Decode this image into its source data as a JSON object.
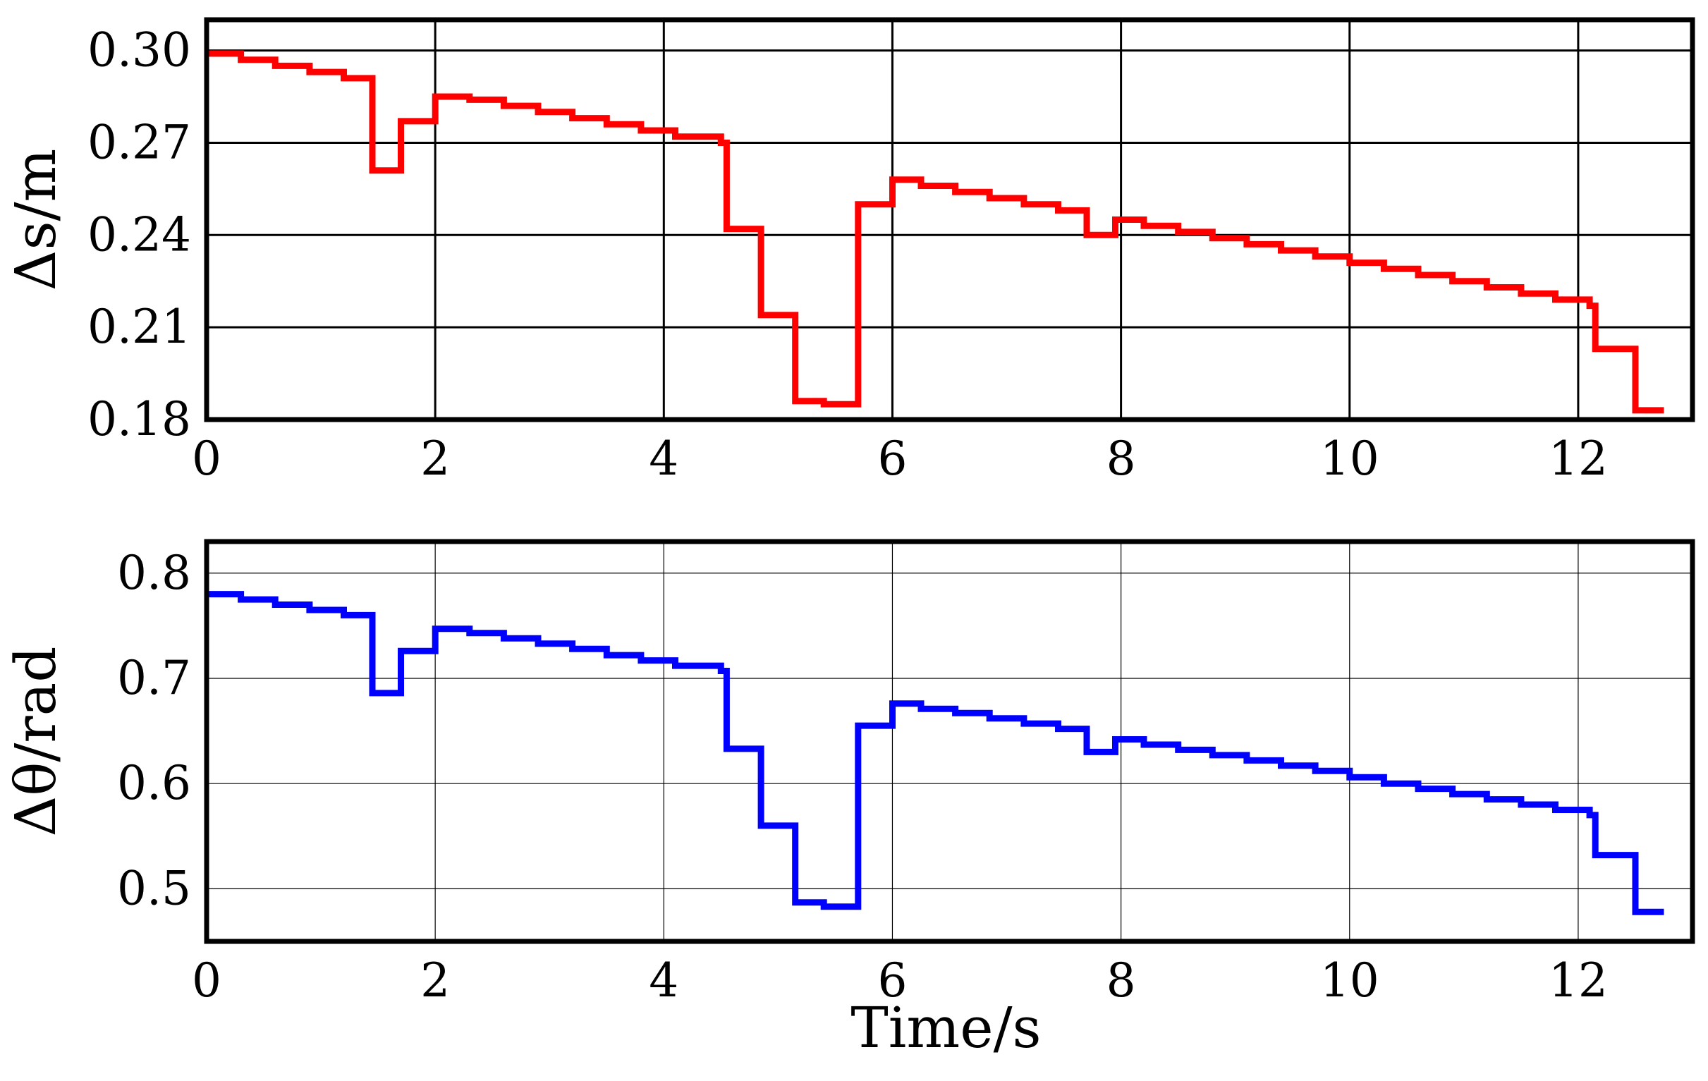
{
  "chart_data": [
    {
      "type": "line",
      "step": true,
      "xlabel": "",
      "ylabel": "Δs/m",
      "xlim": [
        0,
        13
      ],
      "ylim": [
        0.18,
        0.31
      ],
      "xticks": [
        "0",
        "2",
        "4",
        "6",
        "8",
        "10",
        "12"
      ],
      "yticks": [
        "0.18",
        "0.21",
        "0.24",
        "0.27",
        "0.30"
      ],
      "grid": true,
      "series": [
        {
          "color": "#ff0000",
          "x": [
            0,
            0.3,
            0.6,
            0.9,
            1.2,
            1.4,
            1.45,
            1.65,
            1.7,
            1.95,
            2.0,
            2.3,
            2.6,
            2.9,
            3.2,
            3.5,
            3.8,
            4.1,
            4.5,
            4.55,
            4.8,
            4.85,
            5.1,
            5.15,
            5.4,
            5.65,
            5.7,
            5.95,
            6.0,
            6.25,
            6.55,
            6.85,
            7.15,
            7.45,
            7.65,
            7.7,
            7.9,
            7.95,
            8.2,
            8.5,
            8.8,
            9.1,
            9.4,
            9.7,
            10.0,
            10.3,
            10.6,
            10.9,
            11.2,
            11.5,
            11.8,
            12.1,
            12.15,
            12.45,
            12.5,
            12.75
          ],
          "y": [
            0.299,
            0.297,
            0.295,
            0.293,
            0.291,
            0.291,
            0.261,
            0.261,
            0.277,
            0.277,
            0.285,
            0.284,
            0.282,
            0.28,
            0.278,
            0.276,
            0.274,
            0.272,
            0.27,
            0.242,
            0.242,
            0.214,
            0.214,
            0.186,
            0.185,
            0.185,
            0.25,
            0.25,
            0.258,
            0.256,
            0.254,
            0.252,
            0.25,
            0.248,
            0.248,
            0.24,
            0.24,
            0.245,
            0.243,
            0.241,
            0.239,
            0.237,
            0.235,
            0.233,
            0.231,
            0.229,
            0.227,
            0.225,
            0.223,
            0.221,
            0.219,
            0.217,
            0.203,
            0.203,
            0.183,
            0.183
          ]
        }
      ]
    },
    {
      "type": "line",
      "step": true,
      "xlabel": "Time/s",
      "ylabel": "Δθ/rad",
      "xlim": [
        0,
        13
      ],
      "ylim": [
        0.45,
        0.83
      ],
      "xticks": [
        "0",
        "2",
        "4",
        "6",
        "8",
        "10",
        "12"
      ],
      "yticks": [
        "0.5",
        "0.6",
        "0.7",
        "0.8"
      ],
      "grid": true,
      "series": [
        {
          "color": "#0000ff",
          "x": [
            0,
            0.3,
            0.6,
            0.9,
            1.2,
            1.4,
            1.45,
            1.65,
            1.7,
            1.95,
            2.0,
            2.3,
            2.6,
            2.9,
            3.2,
            3.5,
            3.8,
            4.1,
            4.5,
            4.55,
            4.8,
            4.85,
            5.1,
            5.15,
            5.4,
            5.65,
            5.7,
            5.95,
            6.0,
            6.25,
            6.55,
            6.85,
            7.15,
            7.45,
            7.65,
            7.7,
            7.9,
            7.95,
            8.2,
            8.5,
            8.8,
            9.1,
            9.4,
            9.7,
            10.0,
            10.3,
            10.6,
            10.9,
            11.2,
            11.5,
            11.8,
            12.1,
            12.15,
            12.45,
            12.5,
            12.75
          ],
          "y": [
            0.78,
            0.775,
            0.77,
            0.765,
            0.76,
            0.76,
            0.686,
            0.686,
            0.726,
            0.726,
            0.747,
            0.743,
            0.738,
            0.733,
            0.728,
            0.722,
            0.717,
            0.712,
            0.707,
            0.633,
            0.633,
            0.56,
            0.56,
            0.487,
            0.483,
            0.483,
            0.655,
            0.655,
            0.676,
            0.671,
            0.667,
            0.662,
            0.657,
            0.652,
            0.652,
            0.63,
            0.63,
            0.642,
            0.637,
            0.632,
            0.627,
            0.622,
            0.617,
            0.612,
            0.606,
            0.6,
            0.595,
            0.59,
            0.585,
            0.58,
            0.575,
            0.57,
            0.532,
            0.532,
            0.478,
            0.478
          ]
        }
      ]
    }
  ]
}
